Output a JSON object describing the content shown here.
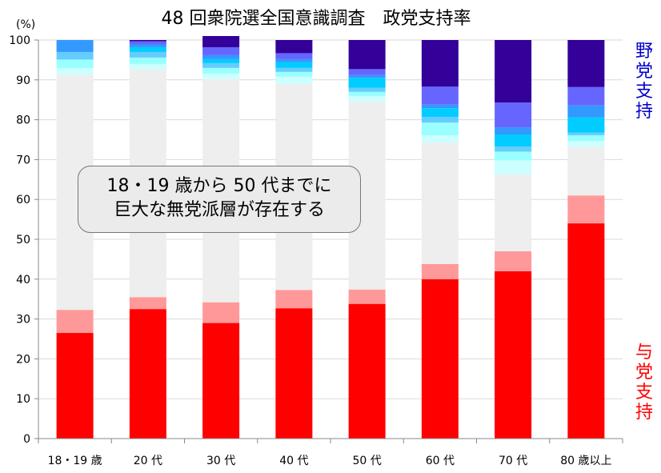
{
  "chart_data": {
    "type": "bar",
    "stacked": true,
    "title": "48 回衆院選全国意識調査　政党支持率",
    "y_unit": "(%)",
    "ylim": [
      0,
      100
    ],
    "y_ticks": [
      "0",
      "10",
      "20",
      "30",
      "40",
      "50",
      "60",
      "70",
      "80",
      "90",
      "100"
    ],
    "grid": true,
    "categories": [
      "18・19 歳",
      "20 代",
      "30 代",
      "40 代",
      "50 代",
      "60 代",
      "70 代",
      "80 歳以上"
    ],
    "series": [
      {
        "color": "#ff0000",
        "values": [
          26.5,
          32.5,
          29,
          32.7,
          33.8,
          40,
          42,
          54
        ]
      },
      {
        "color": "#ff9999",
        "values": [
          5.8,
          3,
          5.2,
          4.6,
          3.6,
          3.8,
          5,
          7
        ]
      },
      {
        "color": "#eeeeee",
        "values": [
          59,
          57.2,
          56,
          51.7,
          47.2,
          30.5,
          19.3,
          12.3
        ]
      },
      {
        "color": "#ccffff",
        "values": [
          1.7,
          1.3,
          1.4,
          1.8,
          1.3,
          1.8,
          3.5,
          1.4
        ]
      },
      {
        "color": "#99ffff",
        "values": [
          2.1,
          1.6,
          1.4,
          1.2,
          1.1,
          3.2,
          2.2,
          1.4
        ]
      },
      {
        "color": "#66ccff",
        "values": [
          1.9,
          1.4,
          1.2,
          1.0,
          1.0,
          1.4,
          1.3,
          0.7
        ]
      },
      {
        "color": "#00ccff",
        "values": [
          0,
          1.2,
          1.0,
          1.4,
          2.5,
          2.2,
          3.0,
          3.8
        ]
      },
      {
        "color": "#3399ff",
        "values": [
          3.0,
          0.7,
          1.0,
          0.8,
          0.7,
          0.9,
          1.8,
          3.0
        ]
      },
      {
        "color": "#6666ff",
        "values": [
          0,
          0.8,
          2.0,
          1.5,
          1.5,
          4.5,
          6.2,
          4.6
        ]
      },
      {
        "color": "#330099",
        "values": [
          0,
          0.3,
          2.8,
          3.3,
          7.3,
          11.7,
          15.7,
          11.8
        ]
      }
    ],
    "right_labels": {
      "top": "野党支持",
      "bottom": "与党支持"
    },
    "annotation": [
      "18・19 歳から 50 代までに",
      "巨大な無党派層が存在する"
    ]
  },
  "colors": {
    "ruling": "#ff0000",
    "opposition": "#0000cc",
    "grid": "#d9d9d9",
    "axis": "#888888"
  }
}
